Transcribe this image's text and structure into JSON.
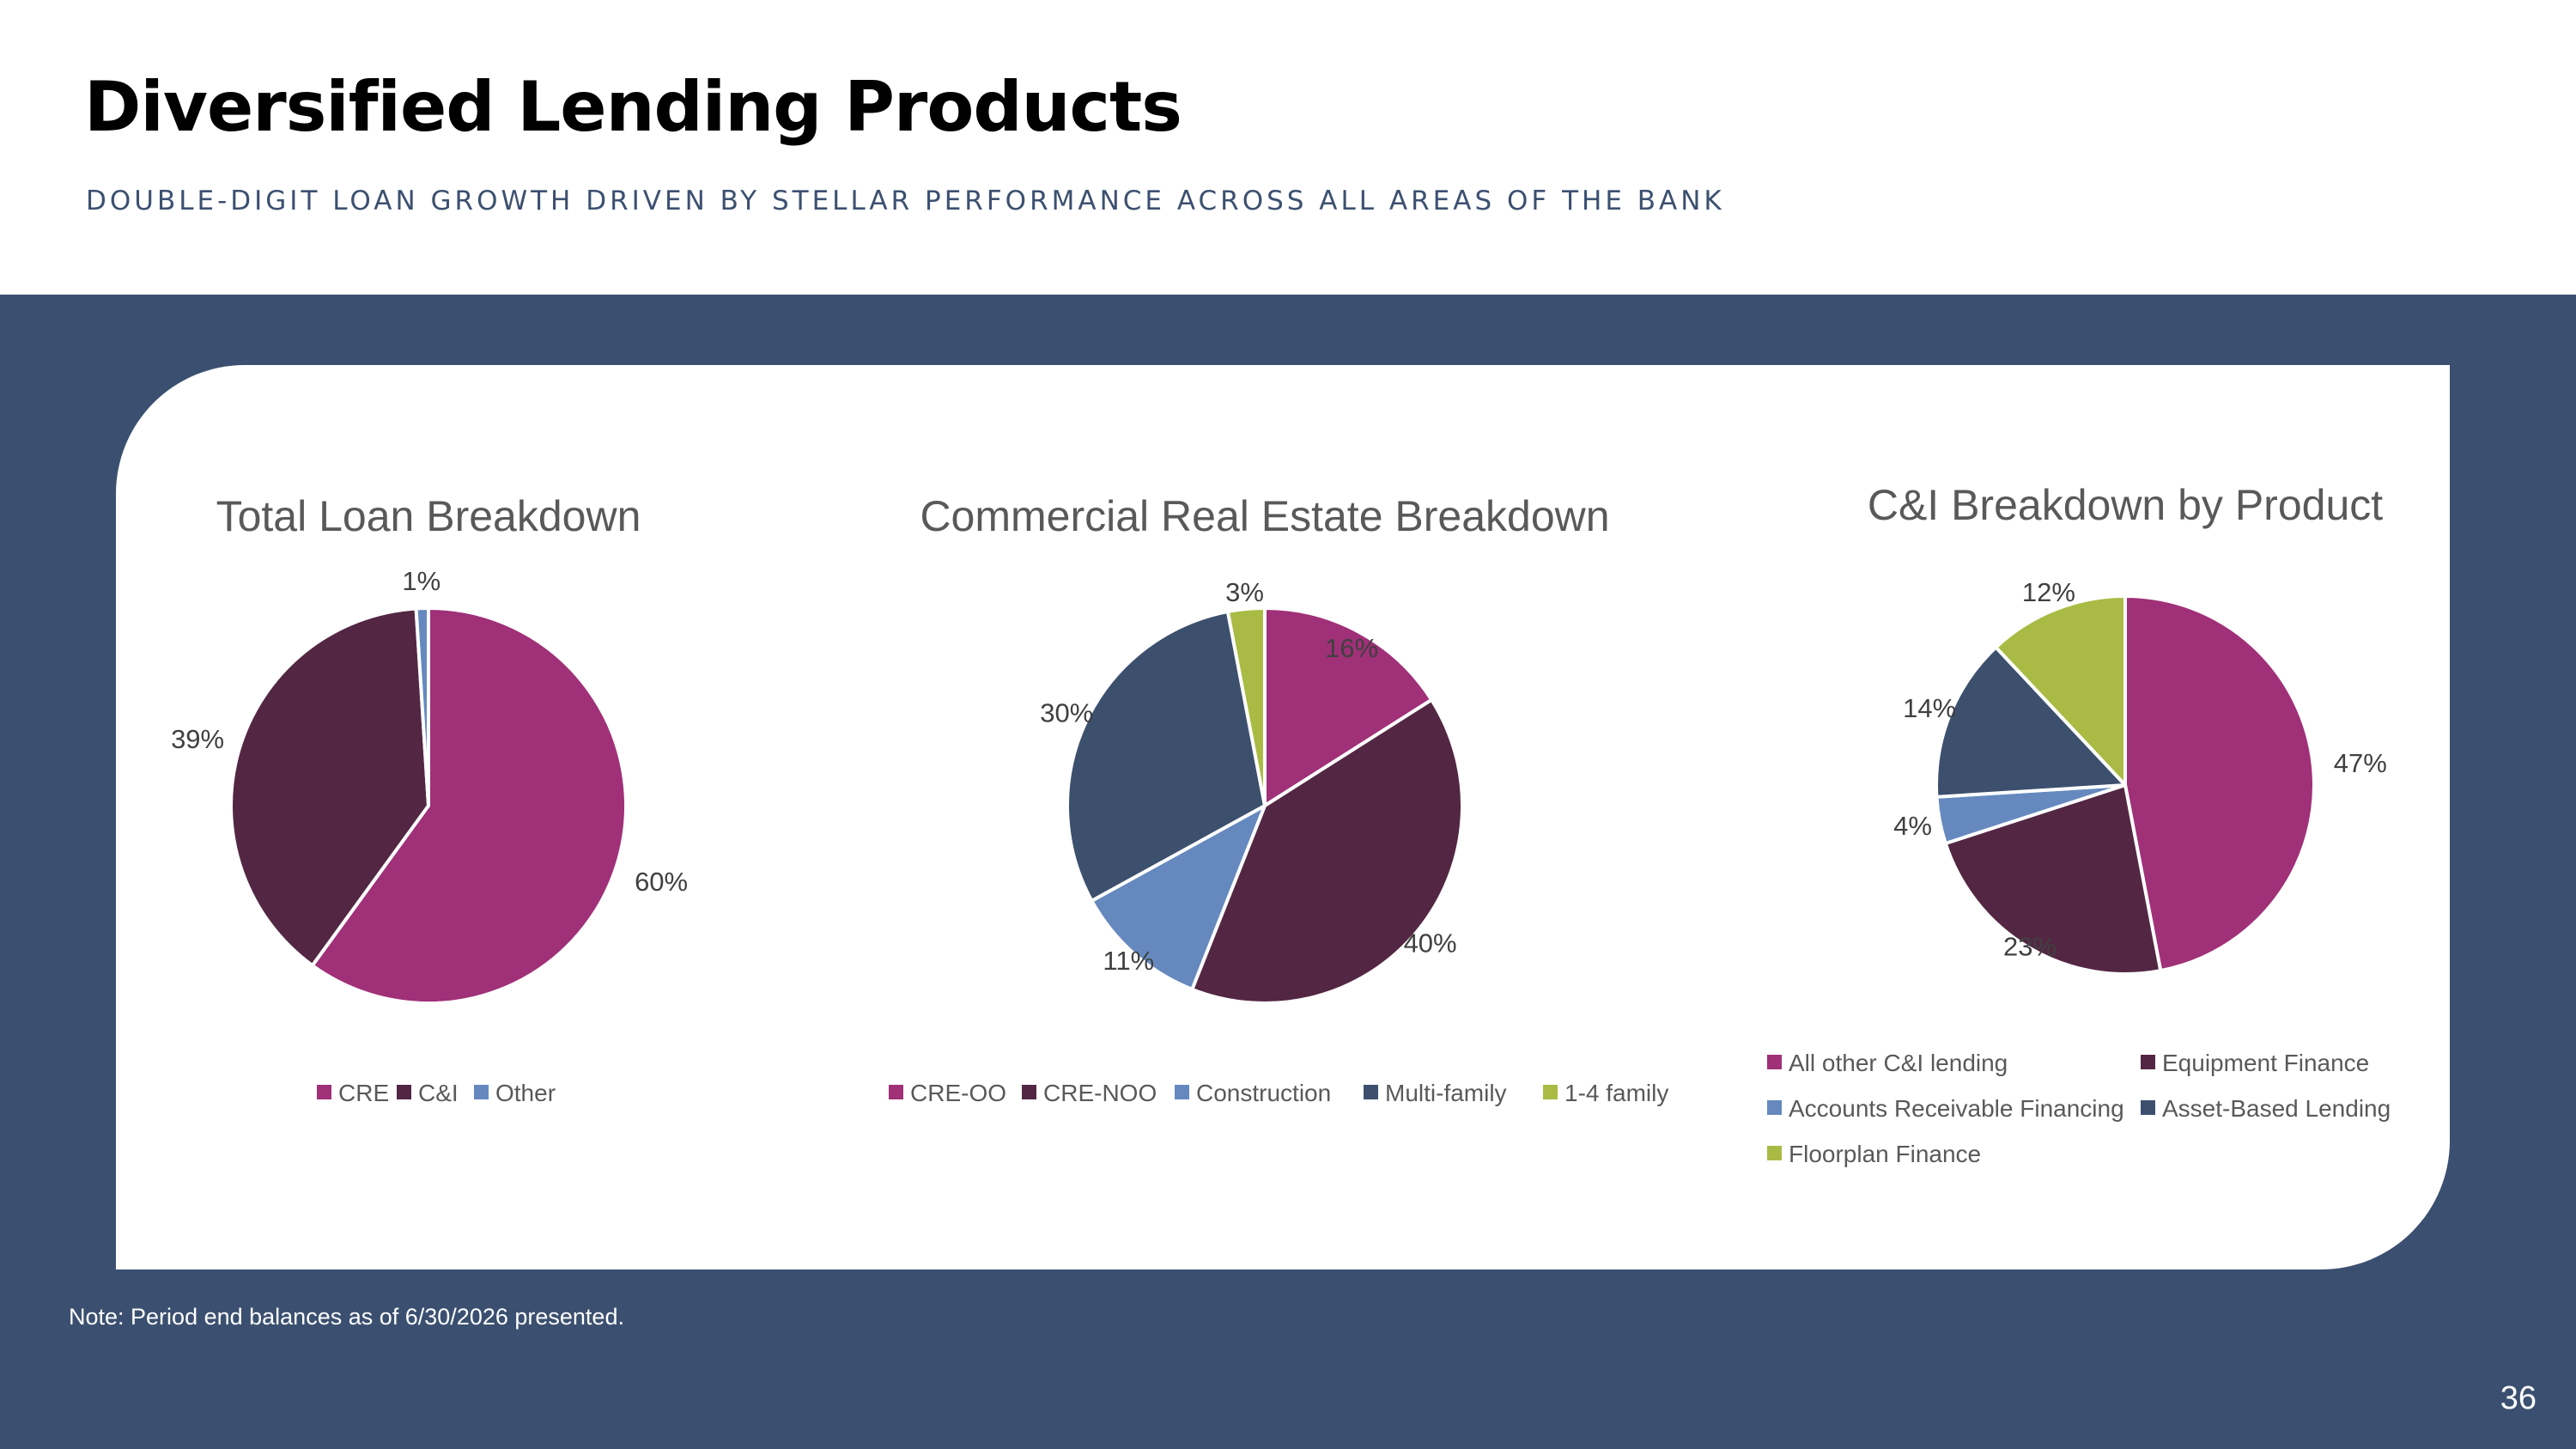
{
  "slide": {
    "title": "Diversified Lending Products",
    "subtitle": "DOUBLE-DIGIT LOAN GROWTH DRIVEN BY STELLAR PERFORMANCE ACROSS ALL AREAS OF THE BANK",
    "note": "Note: Period end balances as of 6/30/2026 presented.",
    "page_number": "36"
  },
  "colors": {
    "header_bg": "#ffffff",
    "band_bg": "#3b5070",
    "card_bg": "#ffffff",
    "subtitle": "#3c5070"
  },
  "chart_data": [
    {
      "type": "pie",
      "title": "Total Loan Breakdown",
      "start_angle_deg": 0,
      "direction": "clockwise",
      "legend_position": "bottom",
      "slices": [
        {
          "label": "CRE",
          "value": 60,
          "display": "60%",
          "color": "#a03078"
        },
        {
          "label": "C&I",
          "value": 39,
          "display": "39%",
          "color": "#532743"
        },
        {
          "label": "Other",
          "value": 1,
          "display": "1%",
          "color": "#6589be"
        }
      ]
    },
    {
      "type": "pie",
      "title": "Commercial Real Estate Breakdown",
      "start_angle_deg": 0,
      "direction": "clockwise",
      "legend_position": "bottom",
      "slices": [
        {
          "label": "CRE-OO",
          "value": 16,
          "display": "16%",
          "color": "#a03078"
        },
        {
          "label": "CRE-NOO",
          "value": 40,
          "display": "40%",
          "color": "#532743"
        },
        {
          "label": "Construction",
          "value": 11,
          "display": "11%",
          "color": "#6589be"
        },
        {
          "label": "Multi-family",
          "value": 30,
          "display": "30%",
          "color": "#3c506e"
        },
        {
          "label": "1-4 family",
          "value": 3,
          "display": "3%",
          "color": "#a9bb44"
        }
      ]
    },
    {
      "type": "pie",
      "title": "C&I Breakdown by Product",
      "start_angle_deg": 0,
      "direction": "clockwise",
      "legend_position": "bottom",
      "slices": [
        {
          "label": "All other C&I lending",
          "value": 47,
          "display": "47%",
          "color": "#a03078"
        },
        {
          "label": "Equipment Finance",
          "value": 23,
          "display": "23%",
          "color": "#532743"
        },
        {
          "label": "Accounts Receivable Financing",
          "value": 4,
          "display": "4%",
          "color": "#6589be"
        },
        {
          "label": "Asset-Based Lending",
          "value": 14,
          "display": "14%",
          "color": "#3c506e"
        },
        {
          "label": "Floorplan Finance",
          "value": 12,
          "display": "12%",
          "color": "#a9bb44"
        }
      ]
    }
  ]
}
